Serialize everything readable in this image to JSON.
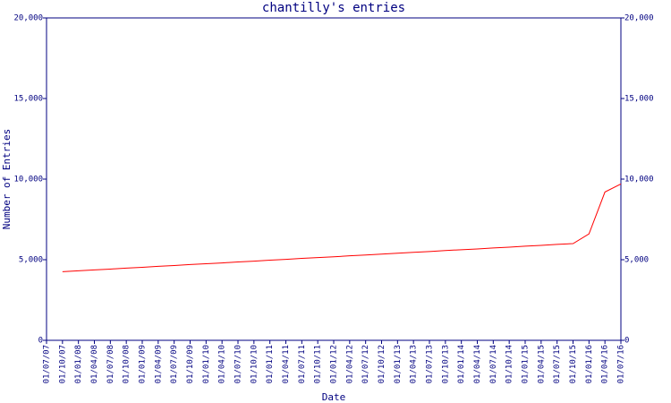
{
  "chart_data": {
    "type": "line",
    "title": "chantilly's entries",
    "x_label": "Date",
    "y_label": "Number of Entries",
    "categories": [
      "01/07/07",
      "01/10/07",
      "01/01/08",
      "01/04/08",
      "01/07/08",
      "01/10/08",
      "01/01/09",
      "01/04/09",
      "01/07/09",
      "01/10/09",
      "01/01/10",
      "01/04/10",
      "01/07/10",
      "01/10/10",
      "01/01/11",
      "01/04/11",
      "01/07/11",
      "01/10/11",
      "01/01/12",
      "01/04/12",
      "01/07/12",
      "01/10/12",
      "01/01/13",
      "01/04/13",
      "01/07/13",
      "01/10/13",
      "01/01/14",
      "01/04/14",
      "01/07/14",
      "01/10/14",
      "01/01/15",
      "01/04/15",
      "01/07/15",
      "01/10/15",
      "01/01/16",
      "01/04/16",
      "01/07/16"
    ],
    "series": [
      {
        "color": "#ff0000",
        "values": [
          null,
          4260,
          4310,
          4370,
          4420,
          4480,
          4530,
          4590,
          4640,
          4700,
          4750,
          4800,
          4860,
          4910,
          4970,
          5020,
          5080,
          5130,
          5180,
          5240,
          5290,
          5350,
          5400,
          5460,
          5510,
          5570,
          5620,
          5670,
          5730,
          5780,
          5840,
          5890,
          5950,
          6000,
          6600,
          9200,
          9700
        ]
      }
    ],
    "ylim": [
      0,
      20000
    ],
    "yticks": [
      0,
      {
        "value": 5000,
        "label": "5,000"
      },
      {
        "value": 10000,
        "label": "10,000"
      },
      {
        "value": 15000,
        "label": "15,000"
      },
      {
        "value": 20000,
        "label": "20,000"
      }
    ],
    "y2lim": [
      0,
      20000
    ],
    "y2ticks": [
      0,
      {
        "value": 5000,
        "label": "5,000"
      },
      {
        "value": 10000,
        "label": "10,000"
      },
      {
        "value": 15000,
        "label": "15,000"
      },
      {
        "value": 20000,
        "label": "20,000"
      }
    ],
    "axis_color": "#000080"
  }
}
